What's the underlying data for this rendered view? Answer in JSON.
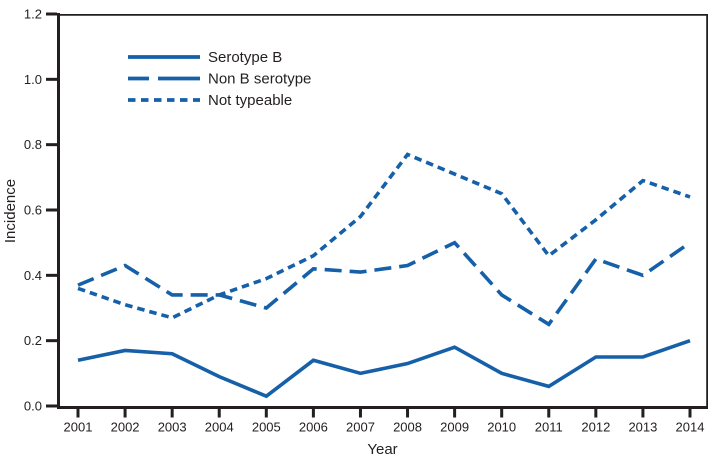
{
  "figure": {
    "background": "#ffffff"
  },
  "chart_data": {
    "type": "line",
    "title": "",
    "xlabel": "Year",
    "ylabel": "Incidence",
    "x_categories": [
      "2001",
      "2002",
      "2003",
      "2004",
      "2005",
      "2006",
      "2007",
      "2008",
      "2009",
      "2010",
      "2011",
      "2012",
      "2013",
      "2014"
    ],
    "ylim": [
      0,
      1.2
    ],
    "ytick_step": 0.2,
    "ytick_labels": [
      "0.0",
      "0.2",
      "0.4",
      "0.6",
      "0.8",
      "1.0",
      "1.2"
    ],
    "grid": false,
    "legend_position": "inside-top-left",
    "line_color": "#1560A8",
    "axis_color": "#231F20",
    "series": [
      {
        "name": "Serotype B",
        "line_style": "solid",
        "values": [
          0.14,
          0.17,
          0.16,
          0.09,
          0.03,
          0.14,
          0.1,
          0.13,
          0.18,
          0.1,
          0.06,
          0.15,
          0.15,
          0.2
        ]
      },
      {
        "name": "Non B serotype",
        "line_style": "long-dash",
        "values": [
          0.37,
          0.43,
          0.34,
          0.34,
          0.3,
          0.42,
          0.41,
          0.43,
          0.5,
          0.34,
          0.25,
          0.45,
          0.4,
          0.5
        ]
      },
      {
        "name": "Not typeable",
        "line_style": "short-dash",
        "values": [
          0.36,
          0.31,
          0.27,
          0.34,
          0.39,
          0.46,
          0.58,
          0.77,
          0.71,
          0.65,
          0.46,
          0.57,
          0.69,
          0.64
        ]
      }
    ]
  }
}
